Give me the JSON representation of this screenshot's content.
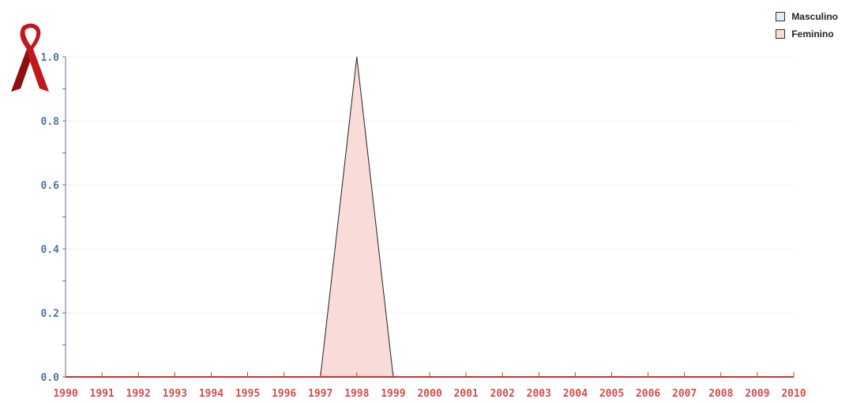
{
  "chart_data": {
    "type": "area",
    "x": [
      "1990",
      "1991",
      "1992",
      "1993",
      "1994",
      "1995",
      "1996",
      "1997",
      "1998",
      "1999",
      "2000",
      "2001",
      "2002",
      "2003",
      "2004",
      "2005",
      "2006",
      "2007",
      "2008",
      "2009",
      "2010"
    ],
    "series": [
      {
        "name": "Masculino",
        "color": "#dceefa",
        "values": [
          0,
          0,
          0,
          0,
          0,
          0,
          0,
          0,
          0,
          0,
          0,
          0,
          0,
          0,
          0,
          0,
          0,
          0,
          0,
          0,
          0
        ]
      },
      {
        "name": "Feminino",
        "color": "#f9dcd8",
        "values": [
          0,
          0,
          0,
          0,
          0,
          0,
          0,
          0,
          1,
          0,
          0,
          0,
          0,
          0,
          0,
          0,
          0,
          0,
          0,
          0,
          0
        ]
      }
    ],
    "y_ticks": [
      "0.0",
      "0.2",
      "0.4",
      "0.6",
      "0.8",
      "1.0"
    ],
    "ylim": [
      0,
      1.0
    ],
    "title": "",
    "xlabel": "",
    "ylabel": "",
    "legend_position": "top-right",
    "grid": true,
    "axis_color": "#c0392b",
    "y_tick_color": "#4f74a6",
    "x_tick_color": "#d94a4a",
    "logo_icon": "red-ribbon-icon"
  }
}
